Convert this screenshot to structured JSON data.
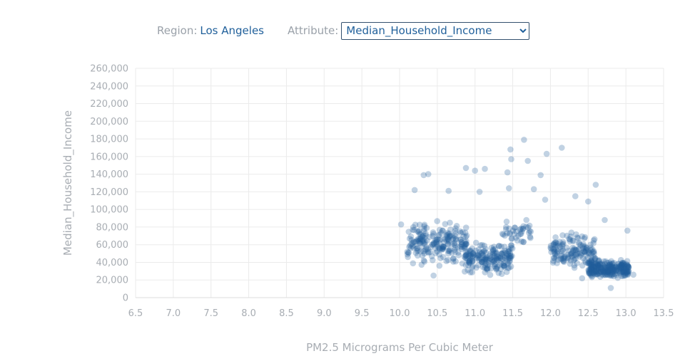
{
  "controls": {
    "region_label": "Region:",
    "region_value": "Los Angeles",
    "attribute_label": "Attribute:",
    "attribute_selected": "Median_Household_Income"
  },
  "chart_data": {
    "type": "scatter",
    "xlabel": "PM2.5 Micrograms Per Cubic Meter",
    "ylabel": "Median_Household_Income",
    "xlim": [
      6.5,
      13.5
    ],
    "ylim": [
      0,
      260000
    ],
    "xticks": [
      "6.5",
      "7.0",
      "7.5",
      "8.0",
      "8.5",
      "9.0",
      "9.5",
      "10.0",
      "10.5",
      "11.0",
      "11.5",
      "12.0",
      "12.5",
      "13.0",
      "13.5"
    ],
    "yticks": [
      "0",
      "20,000",
      "40,000",
      "60,000",
      "80,000",
      "100,000",
      "120,000",
      "140,000",
      "160,000",
      "180,000",
      "200,000",
      "220,000",
      "240,000",
      "260,000"
    ],
    "grid": true,
    "marker_color": "#1f5f9a",
    "notable_points": [
      {
        "x": 11.65,
        "y": 179000
      },
      {
        "x": 12.15,
        "y": 170000
      },
      {
        "x": 11.47,
        "y": 168000
      },
      {
        "x": 11.95,
        "y": 163000
      },
      {
        "x": 11.48,
        "y": 157000
      },
      {
        "x": 11.7,
        "y": 155000
      },
      {
        "x": 10.88,
        "y": 147000
      },
      {
        "x": 11.13,
        "y": 146000
      },
      {
        "x": 11.0,
        "y": 144000
      },
      {
        "x": 11.43,
        "y": 142000
      },
      {
        "x": 10.32,
        "y": 139000
      },
      {
        "x": 10.38,
        "y": 140000
      },
      {
        "x": 11.87,
        "y": 139000
      },
      {
        "x": 12.6,
        "y": 128000
      },
      {
        "x": 11.45,
        "y": 124000
      },
      {
        "x": 11.78,
        "y": 123000
      },
      {
        "x": 10.2,
        "y": 122000
      },
      {
        "x": 10.65,
        "y": 121000
      },
      {
        "x": 11.06,
        "y": 120000
      },
      {
        "x": 12.33,
        "y": 115000
      },
      {
        "x": 12.5,
        "y": 109000
      },
      {
        "x": 11.93,
        "y": 111000
      },
      {
        "x": 10.02,
        "y": 83000
      },
      {
        "x": 10.45,
        "y": 25000
      },
      {
        "x": 12.42,
        "y": 22000
      },
      {
        "x": 12.8,
        "y": 11000
      },
      {
        "x": 13.02,
        "y": 76000
      },
      {
        "x": 12.72,
        "y": 88000
      },
      {
        "x": 13.1,
        "y": 26000
      }
    ],
    "clusters": [
      {
        "x_range": [
          10.1,
          10.9
        ],
        "y_center": 62000,
        "y_spread": 22000,
        "count": 210
      },
      {
        "x_range": [
          10.85,
          11.5
        ],
        "y_center": 45000,
        "y_spread": 16000,
        "count": 190
      },
      {
        "x_range": [
          11.35,
          11.75
        ],
        "y_center": 75000,
        "y_spread": 12000,
        "count": 40
      },
      {
        "x_range": [
          12.0,
          12.6
        ],
        "y_center": 52000,
        "y_spread": 18000,
        "count": 150
      },
      {
        "x_range": [
          12.5,
          13.05
        ],
        "y_center": 32000,
        "y_spread": 10000,
        "count": 260
      }
    ]
  }
}
